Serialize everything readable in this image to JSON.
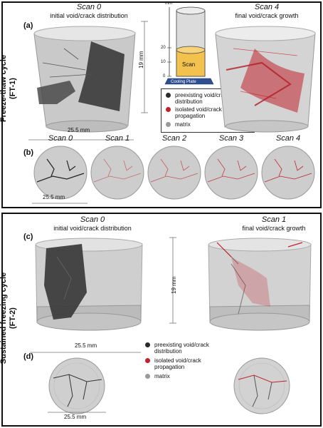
{
  "top": {
    "side_label_1": "Freeze-thaw cycle",
    "side_label_2": "(FT-1)",
    "panel_a": "(a)",
    "panel_b": "(b)",
    "left_scan": "Scan 0",
    "left_sub": "initial void/crack distribution",
    "right_scan": "Scan 4",
    "right_sub": "final void/crack growth",
    "height_dim": "19 mm",
    "width_dim": "25.5 mm",
    "slice_dim": "25.5 mm",
    "slices": [
      "Scan 0",
      "Scan 1",
      "Scan 2",
      "Scan 3",
      "Scan 4"
    ],
    "schematic": {
      "unit": "mm",
      "ticks": [
        "20",
        "10",
        "0"
      ],
      "scan_label": "Scan",
      "plate_label": "Cooling Plate"
    }
  },
  "bottom": {
    "side_label_1": "Sustained freezing cycle",
    "side_label_2": "(FT-2)",
    "panel_c": "(c)",
    "panel_d": "(d)",
    "left_scan": "Scan 0",
    "left_sub": "initial void/crack distribution",
    "right_scan": "Scan 1",
    "right_sub": "final void/crack growth",
    "height_dim": "19 mm",
    "width_dim": "25.5 mm",
    "slice_dim": "25.5 mm"
  },
  "legend": {
    "preexisting": "preexisting void/crack distribution",
    "isolated": "isolated void/crack propagation",
    "matrix": "matrix",
    "colors": {
      "preexisting": "#2a2a2a",
      "isolated": "#c0212b",
      "matrix": "#9a9a9a"
    }
  }
}
